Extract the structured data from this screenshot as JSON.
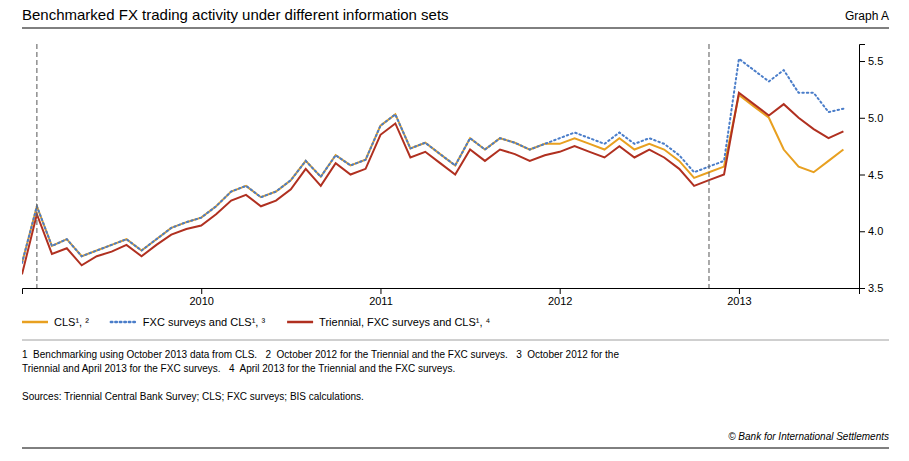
{
  "chart_data": {
    "type": "line",
    "title": "Benchmarked FX trading activity under different information sets",
    "subtitle": "Graph A",
    "notes": [
      "1  Benchmarking using October 2013 data from CLS.   2  October 2012 for the Triennial and the FXC surveys.   3  October 2012 for the",
      "Triennial and April 2013 for the FXC surveys.   4  April 2013 for the Triennial and the FXC surveys."
    ],
    "sources": "Sources: Triennial Central Bank Survey; CLS; FXC surveys; BIS calculations.",
    "copyright": "© Bank for International Settlements",
    "x": [
      2009.0,
      2009.083,
      2009.167,
      2009.25,
      2009.333,
      2009.417,
      2009.5,
      2009.583,
      2009.667,
      2009.75,
      2009.833,
      2009.917,
      2010.0,
      2010.083,
      2010.167,
      2010.25,
      2010.333,
      2010.417,
      2010.5,
      2010.583,
      2010.667,
      2010.75,
      2010.833,
      2010.917,
      2011.0,
      2011.083,
      2011.167,
      2011.25,
      2011.333,
      2011.417,
      2011.5,
      2011.583,
      2011.667,
      2011.75,
      2011.833,
      2011.917,
      2012.0,
      2012.083,
      2012.167,
      2012.25,
      2012.333,
      2012.417,
      2012.5,
      2012.583,
      2012.667,
      2012.75,
      2012.833,
      2012.917,
      2013.0,
      2013.083,
      2013.167,
      2013.25,
      2013.333,
      2013.417,
      2013.5,
      2013.583
    ],
    "series": [
      {
        "name": "CLS¹, ²",
        "color": "#e8a020",
        "line_style": "solid",
        "values": [
          3.72,
          4.22,
          3.87,
          3.93,
          3.78,
          3.83,
          3.88,
          3.93,
          3.83,
          3.93,
          4.03,
          4.08,
          4.12,
          4.22,
          4.35,
          4.4,
          4.3,
          4.35,
          4.45,
          4.62,
          4.48,
          4.67,
          4.58,
          4.63,
          4.93,
          5.03,
          4.73,
          4.78,
          4.68,
          4.58,
          4.82,
          4.72,
          4.82,
          4.78,
          4.72,
          4.77,
          4.77,
          4.82,
          4.77,
          4.72,
          4.82,
          4.72,
          4.77,
          4.72,
          4.62,
          4.47,
          4.52,
          4.57,
          5.2,
          5.1,
          5.0,
          4.72,
          4.57,
          4.52,
          4.62,
          4.72
        ]
      },
      {
        "name": "FXC surveys and CLS¹, ³",
        "color": "#4a7dc9",
        "line_style": "dotted",
        "values": [
          3.72,
          4.22,
          3.87,
          3.93,
          3.78,
          3.83,
          3.88,
          3.93,
          3.83,
          3.93,
          4.03,
          4.08,
          4.12,
          4.22,
          4.35,
          4.4,
          4.3,
          4.35,
          4.45,
          4.62,
          4.48,
          4.67,
          4.58,
          4.63,
          4.93,
          5.03,
          4.73,
          4.78,
          4.68,
          4.58,
          4.82,
          4.72,
          4.82,
          4.78,
          4.72,
          4.77,
          4.82,
          4.87,
          4.82,
          4.77,
          4.87,
          4.77,
          4.82,
          4.77,
          4.67,
          4.52,
          4.57,
          4.62,
          5.52,
          5.42,
          5.32,
          5.42,
          5.22,
          5.22,
          5.05,
          5.08
        ]
      },
      {
        "name": "Triennial, FXC surveys and CLS¹, ⁴",
        "color": "#b03020",
        "line_style": "solid",
        "values": [
          3.62,
          4.15,
          3.8,
          3.85,
          3.7,
          3.78,
          3.82,
          3.88,
          3.78,
          3.88,
          3.97,
          4.02,
          4.05,
          4.15,
          4.27,
          4.32,
          4.22,
          4.27,
          4.37,
          4.55,
          4.4,
          4.6,
          4.5,
          4.55,
          4.85,
          4.95,
          4.65,
          4.7,
          4.6,
          4.5,
          4.72,
          4.62,
          4.72,
          4.68,
          4.62,
          4.67,
          4.7,
          4.75,
          4.7,
          4.65,
          4.75,
          4.65,
          4.72,
          4.65,
          4.55,
          4.4,
          4.45,
          4.5,
          5.22,
          5.12,
          5.02,
          5.12,
          5.0,
          4.9,
          4.82,
          4.88
        ]
      }
    ],
    "vlines": [
      2009.083,
      2012.833
    ],
    "xlim": [
      2009.0,
      2013.67
    ],
    "xticks": [
      2010,
      2011,
      2012,
      2013
    ],
    "ylim": [
      3.5,
      5.65
    ],
    "yticks": [
      3.5,
      {
        "value": 4.0,
        "label": "4.0"
      },
      4.5,
      {
        "value": 5.0,
        "label": "5.0"
      },
      5.5
    ],
    "grid": false,
    "legend": "bottom"
  }
}
